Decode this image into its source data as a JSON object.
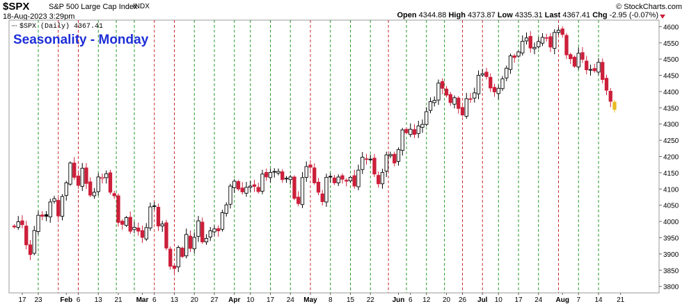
{
  "header": {
    "ticker": "$SPX",
    "description": "S&P 500 Large Cap Index",
    "exchange": "INDX",
    "datetime": "18-Aug-2023 3:29pm",
    "brand": "© StockCharts.com",
    "open_label": "Open",
    "open": "4344.88",
    "high_label": "High",
    "high": "4373.87",
    "low_label": "Low",
    "low": "4335.31",
    "last_label": "Last",
    "last": "4367.41",
    "chg_label": "Chg",
    "chg": "-2.95 (-0.07%)"
  },
  "colors": {
    "up": "#000000",
    "down": "#cc1f3a",
    "latest": "#e8b923",
    "green_line": "#2a9a2a",
    "red_line": "#cc2a2a",
    "title": "#1e2fd6"
  },
  "chart_data": {
    "type": "candlestick",
    "title": "Seasonality - Monday",
    "legend": "$SPX (Daily) 4367.41",
    "y_axis": {
      "side": "right",
      "ylim": [
        3780,
        4620
      ],
      "ticks": [
        3800,
        3850,
        3900,
        3950,
        4000,
        4050,
        4100,
        4150,
        4200,
        4250,
        4300,
        4350,
        4400,
        4450,
        4500,
        4550,
        4600
      ]
    },
    "x_tick_labels": [
      "17",
      "23",
      "Feb",
      "6",
      "13",
      "21",
      "Mar",
      "6",
      "13",
      "20",
      "27",
      "Apr",
      "10",
      "17",
      "24",
      "May",
      "8",
      "15",
      "22",
      "Jun",
      "6",
      "12",
      "20",
      "26",
      "Jul",
      "10",
      "17",
      "24",
      "Aug",
      "7",
      "14",
      "21"
    ],
    "monday_lines": [
      {
        "date": "2023-01-23",
        "color": "green"
      },
      {
        "date": "2023-01-30",
        "color": "red"
      },
      {
        "date": "2023-02-06",
        "color": "red"
      },
      {
        "date": "2023-02-13",
        "color": "green"
      },
      {
        "date": "2023-02-20",
        "color": "green"
      },
      {
        "date": "2023-02-27",
        "color": "green"
      },
      {
        "date": "2023-03-06",
        "color": "red"
      },
      {
        "date": "2023-03-13",
        "color": "red"
      },
      {
        "date": "2023-03-20",
        "color": "green"
      },
      {
        "date": "2023-03-27",
        "color": "green"
      },
      {
        "date": "2023-04-03",
        "color": "green"
      },
      {
        "date": "2023-04-10",
        "color": "green"
      },
      {
        "date": "2023-04-17",
        "color": "green"
      },
      {
        "date": "2023-04-24",
        "color": "green"
      },
      {
        "date": "2023-05-01",
        "color": "red"
      },
      {
        "date": "2023-05-08",
        "color": "green"
      },
      {
        "date": "2023-05-15",
        "color": "green"
      },
      {
        "date": "2023-05-22",
        "color": "green"
      },
      {
        "date": "2023-05-29",
        "color": "red"
      },
      {
        "date": "2023-06-05",
        "color": "green"
      },
      {
        "date": "2023-06-12",
        "color": "green"
      },
      {
        "date": "2023-06-19",
        "color": "green"
      },
      {
        "date": "2023-06-26",
        "color": "red"
      },
      {
        "date": "2023-07-03",
        "color": "red"
      },
      {
        "date": "2023-07-10",
        "color": "green"
      },
      {
        "date": "2023-07-17",
        "color": "green"
      },
      {
        "date": "2023-07-24",
        "color": "green"
      },
      {
        "date": "2023-07-31",
        "color": "red"
      },
      {
        "date": "2023-08-07",
        "color": "green"
      },
      {
        "date": "2023-08-14",
        "color": "green"
      }
    ],
    "close_series": [
      {
        "date": "2023-01-12",
        "close": 3983
      },
      {
        "date": "2023-01-13",
        "close": 3999
      },
      {
        "date": "2023-01-17",
        "close": 3990
      },
      {
        "date": "2023-01-18",
        "close": 3928
      },
      {
        "date": "2023-01-19",
        "close": 3898
      },
      {
        "date": "2023-01-20",
        "close": 3972
      },
      {
        "date": "2023-01-23",
        "close": 4019
      },
      {
        "date": "2023-01-24",
        "close": 4016
      },
      {
        "date": "2023-01-25",
        "close": 4016
      },
      {
        "date": "2023-01-26",
        "close": 4060
      },
      {
        "date": "2023-01-27",
        "close": 4070
      },
      {
        "date": "2023-01-30",
        "close": 4017
      },
      {
        "date": "2023-01-31",
        "close": 4077
      },
      {
        "date": "2023-02-01",
        "close": 4119
      },
      {
        "date": "2023-02-02",
        "close": 4180
      },
      {
        "date": "2023-02-03",
        "close": 4136
      },
      {
        "date": "2023-02-06",
        "close": 4111
      },
      {
        "date": "2023-02-07",
        "close": 4164
      },
      {
        "date": "2023-02-08",
        "close": 4117
      },
      {
        "date": "2023-02-09",
        "close": 4081
      },
      {
        "date": "2023-02-10",
        "close": 4090
      },
      {
        "date": "2023-02-13",
        "close": 4137
      },
      {
        "date": "2023-02-14",
        "close": 4136
      },
      {
        "date": "2023-02-15",
        "close": 4147
      },
      {
        "date": "2023-02-16",
        "close": 4090
      },
      {
        "date": "2023-02-17",
        "close": 4079
      },
      {
        "date": "2023-02-21",
        "close": 3997
      },
      {
        "date": "2023-02-22",
        "close": 3991
      },
      {
        "date": "2023-02-23",
        "close": 4012
      },
      {
        "date": "2023-02-24",
        "close": 3970
      },
      {
        "date": "2023-02-27",
        "close": 3982
      },
      {
        "date": "2023-02-28",
        "close": 3970
      },
      {
        "date": "2023-03-01",
        "close": 3951
      },
      {
        "date": "2023-03-02",
        "close": 3981
      },
      {
        "date": "2023-03-03",
        "close": 4045
      },
      {
        "date": "2023-03-06",
        "close": 4048
      },
      {
        "date": "2023-03-07",
        "close": 3986
      },
      {
        "date": "2023-03-08",
        "close": 3992
      },
      {
        "date": "2023-03-09",
        "close": 3918
      },
      {
        "date": "2023-03-10",
        "close": 3862
      },
      {
        "date": "2023-03-13",
        "close": 3855
      },
      {
        "date": "2023-03-14",
        "close": 3920
      },
      {
        "date": "2023-03-15",
        "close": 3892
      },
      {
        "date": "2023-03-16",
        "close": 3960
      },
      {
        "date": "2023-03-17",
        "close": 3917
      },
      {
        "date": "2023-03-20",
        "close": 3951
      },
      {
        "date": "2023-03-21",
        "close": 4002
      },
      {
        "date": "2023-03-22",
        "close": 3937
      },
      {
        "date": "2023-03-23",
        "close": 3948
      },
      {
        "date": "2023-03-24",
        "close": 3971
      },
      {
        "date": "2023-03-27",
        "close": 3977
      },
      {
        "date": "2023-03-28",
        "close": 3971
      },
      {
        "date": "2023-03-29",
        "close": 4027
      },
      {
        "date": "2023-03-30",
        "close": 4051
      },
      {
        "date": "2023-03-31",
        "close": 4109
      },
      {
        "date": "2023-04-03",
        "close": 4124
      },
      {
        "date": "2023-04-04",
        "close": 4100
      },
      {
        "date": "2023-04-05",
        "close": 4091
      },
      {
        "date": "2023-04-06",
        "close": 4105
      },
      {
        "date": "2023-04-10",
        "close": 4109
      },
      {
        "date": "2023-04-11",
        "close": 4108
      },
      {
        "date": "2023-04-12",
        "close": 4092
      },
      {
        "date": "2023-04-13",
        "close": 4146
      },
      {
        "date": "2023-04-14",
        "close": 4137
      },
      {
        "date": "2023-04-17",
        "close": 4151
      },
      {
        "date": "2023-04-18",
        "close": 4154
      },
      {
        "date": "2023-04-19",
        "close": 4154
      },
      {
        "date": "2023-04-20",
        "close": 4129
      },
      {
        "date": "2023-04-21",
        "close": 4133
      },
      {
        "date": "2023-04-24",
        "close": 4137
      },
      {
        "date": "2023-04-25",
        "close": 4071
      },
      {
        "date": "2023-04-26",
        "close": 4055
      },
      {
        "date": "2023-04-27",
        "close": 4135
      },
      {
        "date": "2023-04-28",
        "close": 4169
      },
      {
        "date": "2023-05-01",
        "close": 4167
      },
      {
        "date": "2023-05-02",
        "close": 4119
      },
      {
        "date": "2023-05-03",
        "close": 4090
      },
      {
        "date": "2023-05-04",
        "close": 4061
      },
      {
        "date": "2023-05-05",
        "close": 4136
      },
      {
        "date": "2023-05-08",
        "close": 4138
      },
      {
        "date": "2023-05-09",
        "close": 4119
      },
      {
        "date": "2023-05-10",
        "close": 4137
      },
      {
        "date": "2023-05-11",
        "close": 4130
      },
      {
        "date": "2023-05-12",
        "close": 4124
      },
      {
        "date": "2023-05-15",
        "close": 4136
      },
      {
        "date": "2023-05-16",
        "close": 4109
      },
      {
        "date": "2023-05-17",
        "close": 4158
      },
      {
        "date": "2023-05-18",
        "close": 4198
      },
      {
        "date": "2023-05-19",
        "close": 4192
      },
      {
        "date": "2023-05-22",
        "close": 4192
      },
      {
        "date": "2023-05-23",
        "close": 4146
      },
      {
        "date": "2023-05-24",
        "close": 4116
      },
      {
        "date": "2023-05-25",
        "close": 4151
      },
      {
        "date": "2023-05-26",
        "close": 4205
      },
      {
        "date": "2023-05-30",
        "close": 4206
      },
      {
        "date": "2023-05-31",
        "close": 4180
      },
      {
        "date": "2023-06-01",
        "close": 4221
      },
      {
        "date": "2023-06-02",
        "close": 4282
      },
      {
        "date": "2023-06-05",
        "close": 4273
      },
      {
        "date": "2023-06-06",
        "close": 4284
      },
      {
        "date": "2023-06-07",
        "close": 4268
      },
      {
        "date": "2023-06-08",
        "close": 4294
      },
      {
        "date": "2023-06-09",
        "close": 4299
      },
      {
        "date": "2023-06-12",
        "close": 4338
      },
      {
        "date": "2023-06-13",
        "close": 4369
      },
      {
        "date": "2023-06-14",
        "close": 4373
      },
      {
        "date": "2023-06-15",
        "close": 4426
      },
      {
        "date": "2023-06-16",
        "close": 4410
      },
      {
        "date": "2023-06-20",
        "close": 4389
      },
      {
        "date": "2023-06-21",
        "close": 4366
      },
      {
        "date": "2023-06-22",
        "close": 4381
      },
      {
        "date": "2023-06-23",
        "close": 4348
      },
      {
        "date": "2023-06-26",
        "close": 4328
      },
      {
        "date": "2023-06-27",
        "close": 4378
      },
      {
        "date": "2023-06-28",
        "close": 4376
      },
      {
        "date": "2023-06-29",
        "close": 4396
      },
      {
        "date": "2023-06-30",
        "close": 4450
      },
      {
        "date": "2023-07-03",
        "close": 4455
      },
      {
        "date": "2023-07-05",
        "close": 4446
      },
      {
        "date": "2023-07-06",
        "close": 4411
      },
      {
        "date": "2023-07-07",
        "close": 4399
      },
      {
        "date": "2023-07-10",
        "close": 4410
      },
      {
        "date": "2023-07-11",
        "close": 4439
      },
      {
        "date": "2023-07-12",
        "close": 4472
      },
      {
        "date": "2023-07-13",
        "close": 4510
      },
      {
        "date": "2023-07-14",
        "close": 4505
      },
      {
        "date": "2023-07-17",
        "close": 4522
      },
      {
        "date": "2023-07-18",
        "close": 4555
      },
      {
        "date": "2023-07-19",
        "close": 4565
      },
      {
        "date": "2023-07-20",
        "close": 4534
      },
      {
        "date": "2023-07-21",
        "close": 4536
      },
      {
        "date": "2023-07-24",
        "close": 4554
      },
      {
        "date": "2023-07-25",
        "close": 4567
      },
      {
        "date": "2023-07-26",
        "close": 4566
      },
      {
        "date": "2023-07-27",
        "close": 4537
      },
      {
        "date": "2023-07-28",
        "close": 4582
      },
      {
        "date": "2023-07-31",
        "close": 4589
      },
      {
        "date": "2023-08-01",
        "close": 4576
      },
      {
        "date": "2023-08-02",
        "close": 4513
      },
      {
        "date": "2023-08-03",
        "close": 4501
      },
      {
        "date": "2023-08-04",
        "close": 4478
      },
      {
        "date": "2023-08-07",
        "close": 4518
      },
      {
        "date": "2023-08-08",
        "close": 4499
      },
      {
        "date": "2023-08-09",
        "close": 4467
      },
      {
        "date": "2023-08-10",
        "close": 4468
      },
      {
        "date": "2023-08-11",
        "close": 4464
      },
      {
        "date": "2023-08-14",
        "close": 4490
      },
      {
        "date": "2023-08-15",
        "close": 4437
      },
      {
        "date": "2023-08-16",
        "close": 4404
      },
      {
        "date": "2023-08-17",
        "close": 4370
      },
      {
        "date": "2023-08-18",
        "close": 4367.41
      }
    ],
    "last_bar": {
      "date": "2023-08-18",
      "open": 4344.88,
      "high": 4373.87,
      "low": 4335.31,
      "close": 4367.41
    }
  }
}
